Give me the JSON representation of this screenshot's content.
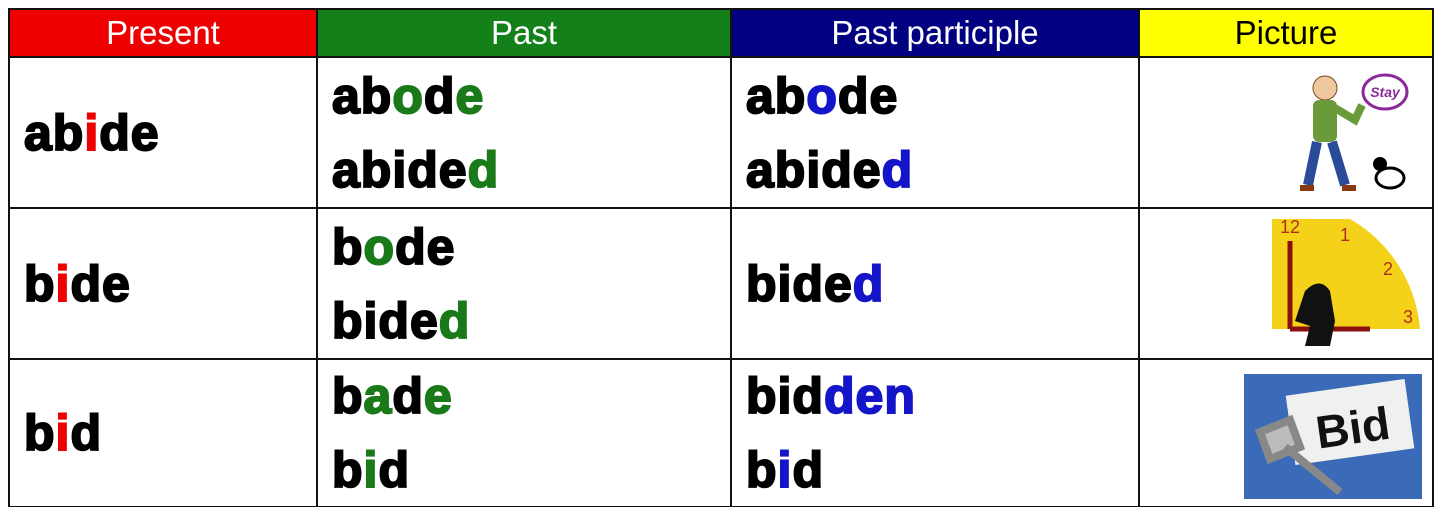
{
  "table": {
    "columns": [
      {
        "label": "Present",
        "color": "#ee0000",
        "text_color": "#ffffff",
        "highlight": "#ee0000"
      },
      {
        "label": "Past",
        "color": "#13801a",
        "text_color": "#ffffff",
        "highlight": "#1a7a1a"
      },
      {
        "label": "Past participle",
        "color": "#000080",
        "text_color": "#ffffff",
        "highlight": "#1414c8"
      },
      {
        "label": "Picture",
        "color": "#ffff00",
        "text_color": "#000000"
      }
    ],
    "rows": [
      {
        "cells": [
          [
            [
              {
                "text": "ab"
              },
              {
                "text": "i",
                "hl": true
              },
              {
                "text": "de"
              }
            ]
          ],
          [
            [
              {
                "text": "ab"
              },
              {
                "text": "o",
                "hl": true
              },
              {
                "text": "d"
              },
              {
                "text": "e",
                "hl": true
              }
            ],
            [
              {
                "text": "abide"
              },
              {
                "text": "d",
                "hl": true
              }
            ]
          ],
          [
            [
              {
                "text": "ab"
              },
              {
                "text": "o",
                "hl": true
              },
              {
                "text": "de"
              }
            ],
            [
              {
                "text": "abide"
              },
              {
                "text": "d",
                "hl": true
              }
            ]
          ]
        ],
        "picture": [
          "Stay"
        ]
      },
      {
        "cells": [
          [
            [
              {
                "text": "b"
              },
              {
                "text": "i",
                "hl": true
              },
              {
                "text": "de"
              }
            ]
          ],
          [
            [
              {
                "text": "b"
              },
              {
                "text": "o",
                "hl": true
              },
              {
                "text": "de"
              }
            ],
            [
              {
                "text": "bide"
              },
              {
                "text": "d",
                "hl": true
              }
            ]
          ],
          [
            [
              {
                "text": "bide"
              },
              {
                "text": "d",
                "hl": true
              }
            ]
          ]
        ],
        "picture": [
          "12",
          "1",
          "2",
          "3"
        ]
      },
      {
        "cells": [
          [
            [
              {
                "text": "b"
              },
              {
                "text": "i",
                "hl": true
              },
              {
                "text": "d"
              }
            ]
          ],
          [
            [
              {
                "text": "b"
              },
              {
                "text": "a",
                "hl": true
              },
              {
                "text": "d"
              },
              {
                "text": "e",
                "hl": true
              }
            ],
            [
              {
                "text": "b"
              },
              {
                "text": "i",
                "hl": true
              },
              {
                "text": "d"
              }
            ]
          ],
          [
            [
              {
                "text": "bid"
              },
              {
                "text": "den",
                "hl": true
              }
            ],
            [
              {
                "text": "b"
              },
              {
                "text": "i",
                "hl": true
              },
              {
                "text": "d"
              }
            ]
          ]
        ],
        "picture": [
          "Bid"
        ]
      }
    ]
  }
}
